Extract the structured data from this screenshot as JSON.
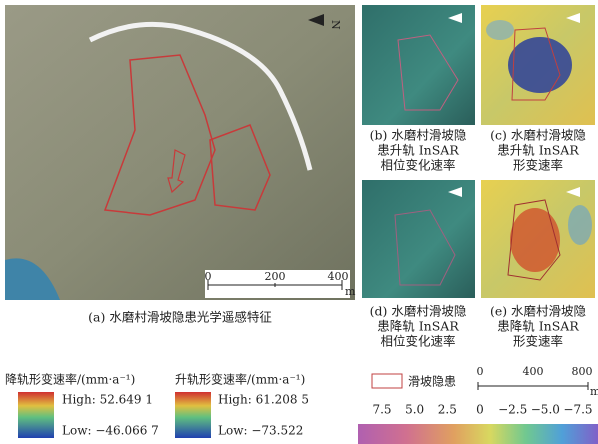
{
  "north_label": "N",
  "panel_a": {
    "caption": "(a) 水磨村滑坡隐患光学遥感特征",
    "scale_labels": [
      "0",
      "200",
      "400"
    ],
    "scale_unit": "m"
  },
  "panel_b": {
    "caption_lines": [
      "(b) 水磨村滑坡隐",
      "患升轨 InSAR",
      "相位变化速率"
    ]
  },
  "panel_c": {
    "caption_lines": [
      "(c) 水磨村滑坡隐",
      "患升轨 InSAR",
      "形变速率"
    ]
  },
  "panel_d": {
    "caption_lines": [
      "(d) 水磨村滑坡隐",
      "患降轨 InSAR",
      "相位变化速率"
    ]
  },
  "panel_e": {
    "caption_lines": [
      "(e) 水磨村滑坡隐",
      "患降轨 InSAR",
      "形变速率"
    ]
  },
  "legend": {
    "descending": {
      "title": "降轨形变速率/(mm·a⁻¹)",
      "high": "High: 52.649 1",
      "low": "Low: −46.066 7"
    },
    "ascending": {
      "title": "升轨形变速率/(mm·a⁻¹)",
      "high": "High: 61.208 5",
      "low": "Low: −73.522"
    },
    "hazard": "滑坡隐患",
    "scale_labels": [
      "0",
      "400",
      "800"
    ],
    "scale_unit": "m",
    "colorbar_labels": [
      "7.5",
      "5.0",
      "2.5",
      "0",
      "−2.5",
      "−5.0",
      "−7.5"
    ]
  }
}
